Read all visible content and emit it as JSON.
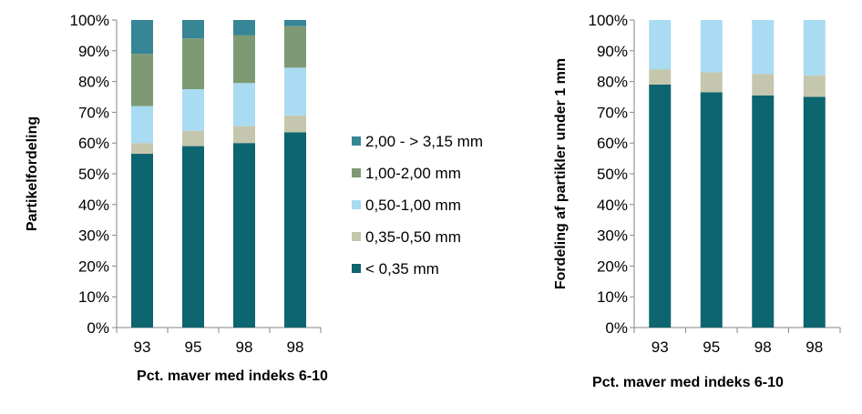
{
  "colors": {
    "lt035": "#0d6570",
    "r035_050": "#c5c6ae",
    "r050_100": "#a9dcf2",
    "r100_200": "#7e9a74",
    "r200_315": "#368695",
    "axis": "#868686"
  },
  "legend": {
    "items": [
      {
        "label": "2,00 - > 3,15 mm",
        "color": "#368695"
      },
      {
        "label": "1,00-2,00 mm",
        "color": "#7e9a74"
      },
      {
        "label": "0,50-1,00 mm",
        "color": "#a9dcf2"
      },
      {
        "label": "0,35-0,50 mm",
        "color": "#c5c6ae"
      },
      {
        "label": "< 0,35 mm",
        "color": "#0d6570"
      }
    ]
  },
  "chart_data": [
    {
      "type": "bar",
      "stacked": true,
      "categories": [
        "93",
        "95",
        "98",
        "98"
      ],
      "ylabel": "Partikelfordeling",
      "xlabel": "Pct. maver med indeks 6-10",
      "ylim": [
        0,
        100
      ],
      "yticks": [
        "0%",
        "10%",
        "20%",
        "30%",
        "40%",
        "50%",
        "60%",
        "70%",
        "80%",
        "90%",
        "100%"
      ],
      "series": [
        {
          "name": "< 0,35 mm",
          "color": "#0d6570",
          "values": [
            56.5,
            59,
            60,
            63.5
          ]
        },
        {
          "name": "0,35-0,50 mm",
          "color": "#c5c6ae",
          "values": [
            3.5,
            5,
            5.5,
            5.5
          ]
        },
        {
          "name": "0,50-1,00 mm",
          "color": "#a9dcf2",
          "values": [
            12,
            13.5,
            14,
            15.5
          ]
        },
        {
          "name": "1,00-2,00 mm",
          "color": "#7e9a74",
          "values": [
            17,
            16.5,
            15.5,
            13.5
          ]
        },
        {
          "name": "2,00 - > 3,15 mm",
          "color": "#368695",
          "values": [
            11,
            6,
            5,
            2
          ]
        }
      ],
      "legend_position": "right"
    },
    {
      "type": "bar",
      "stacked": true,
      "categories": [
        "93",
        "95",
        "98",
        "98"
      ],
      "ylabel": "Fordeling af partikler under 1 mm",
      "xlabel": "Pct. maver med indeks 6-10",
      "ylim": [
        0,
        100
      ],
      "yticks": [
        "0%",
        "10%",
        "20%",
        "30%",
        "40%",
        "50%",
        "60%",
        "70%",
        "80%",
        "90%",
        "100%"
      ],
      "series": [
        {
          "name": "< 0,35 mm",
          "color": "#0d6570",
          "values": [
            79,
            76.5,
            75.5,
            75
          ]
        },
        {
          "name": "0,35-0,50 mm",
          "color": "#c5c6ae",
          "values": [
            5,
            6.5,
            7,
            7
          ]
        },
        {
          "name": "0,50-1,00 mm",
          "color": "#a9dcf2",
          "values": [
            16,
            17,
            17.5,
            18
          ]
        }
      ]
    }
  ]
}
